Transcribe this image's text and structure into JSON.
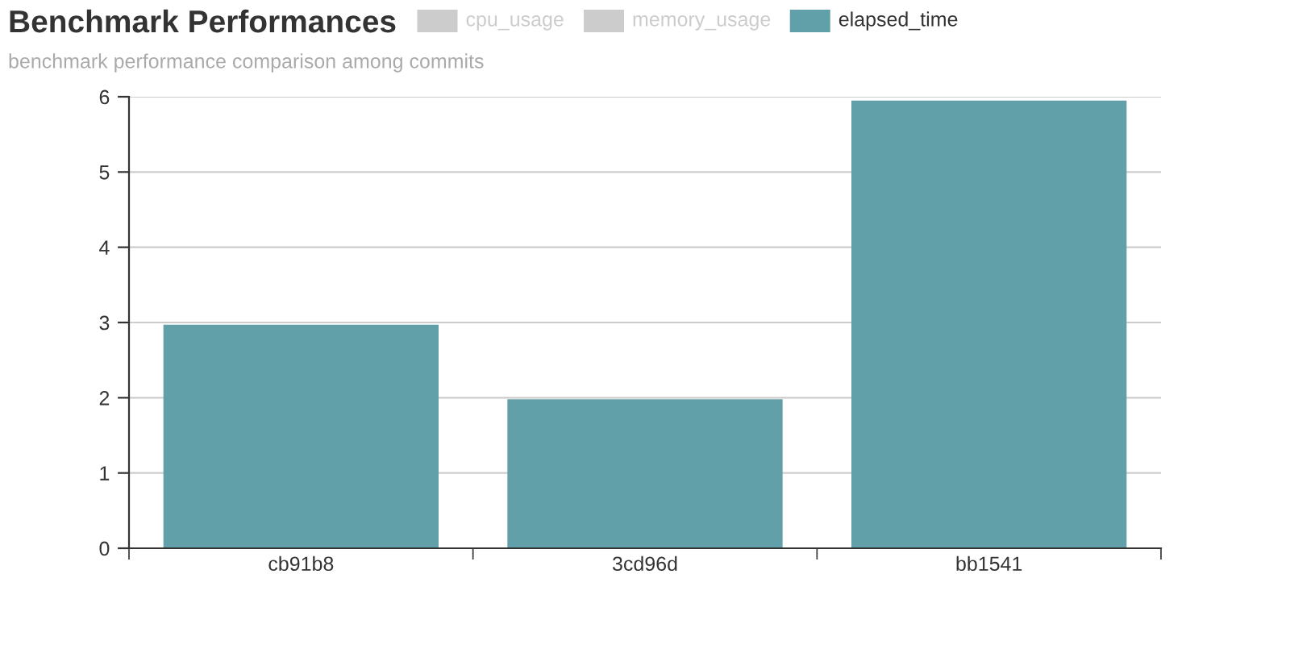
{
  "chart_data": {
    "type": "bar",
    "title": "Benchmark Performances",
    "subtitle": "benchmark performance comparison among commits",
    "categories": [
      "cb91b8",
      "3cd96d",
      "bb1541"
    ],
    "series": [
      {
        "name": "cpu_usage",
        "color": "#cccccc",
        "values": [
          null,
          null,
          null
        ]
      },
      {
        "name": "memory_usage",
        "color": "#cccccc",
        "values": [
          null,
          null,
          null
        ]
      },
      {
        "name": "elapsed_time",
        "color": "#61a0a8",
        "values": [
          2.97,
          1.98,
          5.95
        ]
      }
    ],
    "ylim": [
      0,
      6
    ],
    "yticks": [
      0,
      1,
      2,
      3,
      4,
      5,
      6
    ],
    "grid": "y",
    "legend": "top"
  }
}
